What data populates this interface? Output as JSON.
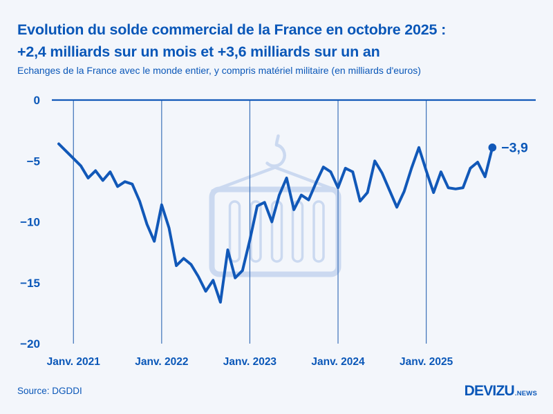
{
  "chart_data": {
    "type": "line",
    "title_line1": "Evolution du solde commercial de la France en octobre 2025 :",
    "title_line2": "+2,4 milliards sur un mois et +3,6 milliards sur un an",
    "subtitle": "Echanges de la France avec le monde entier, y compris matériel militaire (en milliards d'euros)",
    "unit": "milliards d'euros",
    "start_month": "2020-11",
    "end_month": "2025-10",
    "values": [
      -3.6,
      -4.2,
      -4.8,
      -5.4,
      -6.4,
      -5.8,
      -6.6,
      -5.9,
      -7.1,
      -6.7,
      -6.9,
      -8.3,
      -10.2,
      -11.6,
      -8.6,
      -10.5,
      -13.6,
      -13.0,
      -13.5,
      -14.5,
      -15.7,
      -14.8,
      -16.6,
      -12.3,
      -14.6,
      -14.0,
      -11.5,
      -8.7,
      -8.4,
      -10.0,
      -7.8,
      -6.4,
      -9.0,
      -7.8,
      -8.2,
      -6.8,
      -5.5,
      -5.9,
      -7.2,
      -5.6,
      -5.9,
      -8.3,
      -7.6,
      -5.0,
      -6.0,
      -7.4,
      -8.8,
      -7.5,
      -5.6,
      -3.9,
      -5.8,
      -7.6,
      -5.9,
      -7.2,
      -7.3,
      -7.2,
      -5.6,
      -5.1,
      -6.3,
      -3.9
    ],
    "x_ticks": [
      {
        "index": 2,
        "label": "Janv. 2021"
      },
      {
        "index": 14,
        "label": "Janv. 2022"
      },
      {
        "index": 26,
        "label": "Janv. 2023"
      },
      {
        "index": 38,
        "label": "Janv. 2024"
      },
      {
        "index": 50,
        "label": "Janv. 2025"
      }
    ],
    "y_ticks": [
      {
        "value": 0,
        "label": "0"
      },
      {
        "value": -5,
        "label": "−5"
      },
      {
        "value": -10,
        "label": "−10"
      },
      {
        "value": -15,
        "label": "−15"
      },
      {
        "value": -20,
        "label": "−20"
      }
    ],
    "ylim": [
      -20,
      0
    ],
    "grid": "vertical-january-gridlines",
    "legend": "none",
    "end_label": "−3,9",
    "last_value": -3.9,
    "colors": {
      "line": "#1158b8",
      "title": "#0a57b8",
      "grid": "#3a70b8",
      "zero_axis": "#1158b8",
      "watermark": "#cbd9f0",
      "background": "#f3f6fb"
    }
  },
  "footer": {
    "source": "Source: DGDDI",
    "logo_main": "DEVIZU",
    "logo_suffix": ".NEWS"
  }
}
